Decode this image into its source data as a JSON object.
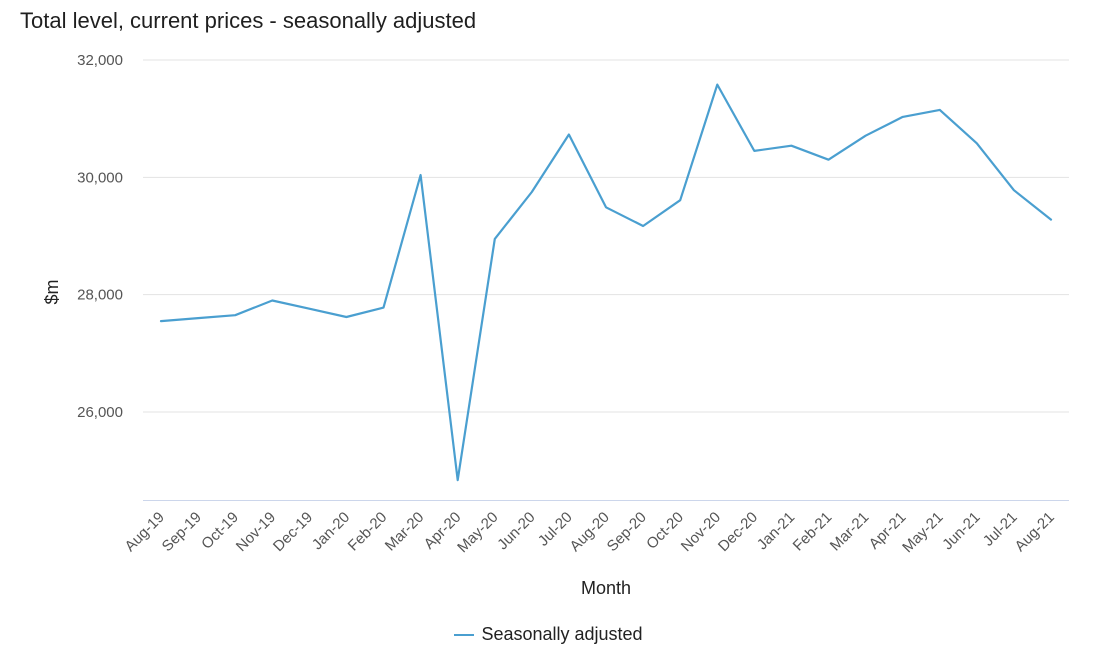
{
  "chart_data": {
    "type": "line",
    "title": "Total level, current prices - seasonally adjusted",
    "xlabel": "Month",
    "ylabel": "$m",
    "categories": [
      "Aug-19",
      "Sep-19",
      "Oct-19",
      "Nov-19",
      "Dec-19",
      "Jan-20",
      "Feb-20",
      "Mar-20",
      "Apr-20",
      "May-20",
      "Jun-20",
      "Jul-20",
      "Aug-20",
      "Sep-20",
      "Oct-20",
      "Nov-20",
      "Dec-20",
      "Jan-21",
      "Feb-21",
      "Mar-21",
      "Apr-21",
      "May-21",
      "Jun-21",
      "Jul-21",
      "Aug-21"
    ],
    "series": [
      {
        "name": "Seasonally adjusted",
        "color": "#4a9fd0",
        "values": [
          27550,
          27600,
          27650,
          27900,
          27760,
          27620,
          27780,
          30040,
          24840,
          28950,
          29750,
          30730,
          29490,
          29170,
          29610,
          31580,
          30450,
          30540,
          30300,
          30710,
          31030,
          31150,
          30580,
          29780,
          29280
        ]
      }
    ],
    "ylim": [
      24500,
      32000
    ],
    "yticks": [
      26000,
      28000,
      30000,
      32000
    ],
    "ytick_labels": [
      "26,000",
      "28,000",
      "30,000",
      "32,000"
    ],
    "grid": true,
    "legend_position": "bottom-center"
  }
}
